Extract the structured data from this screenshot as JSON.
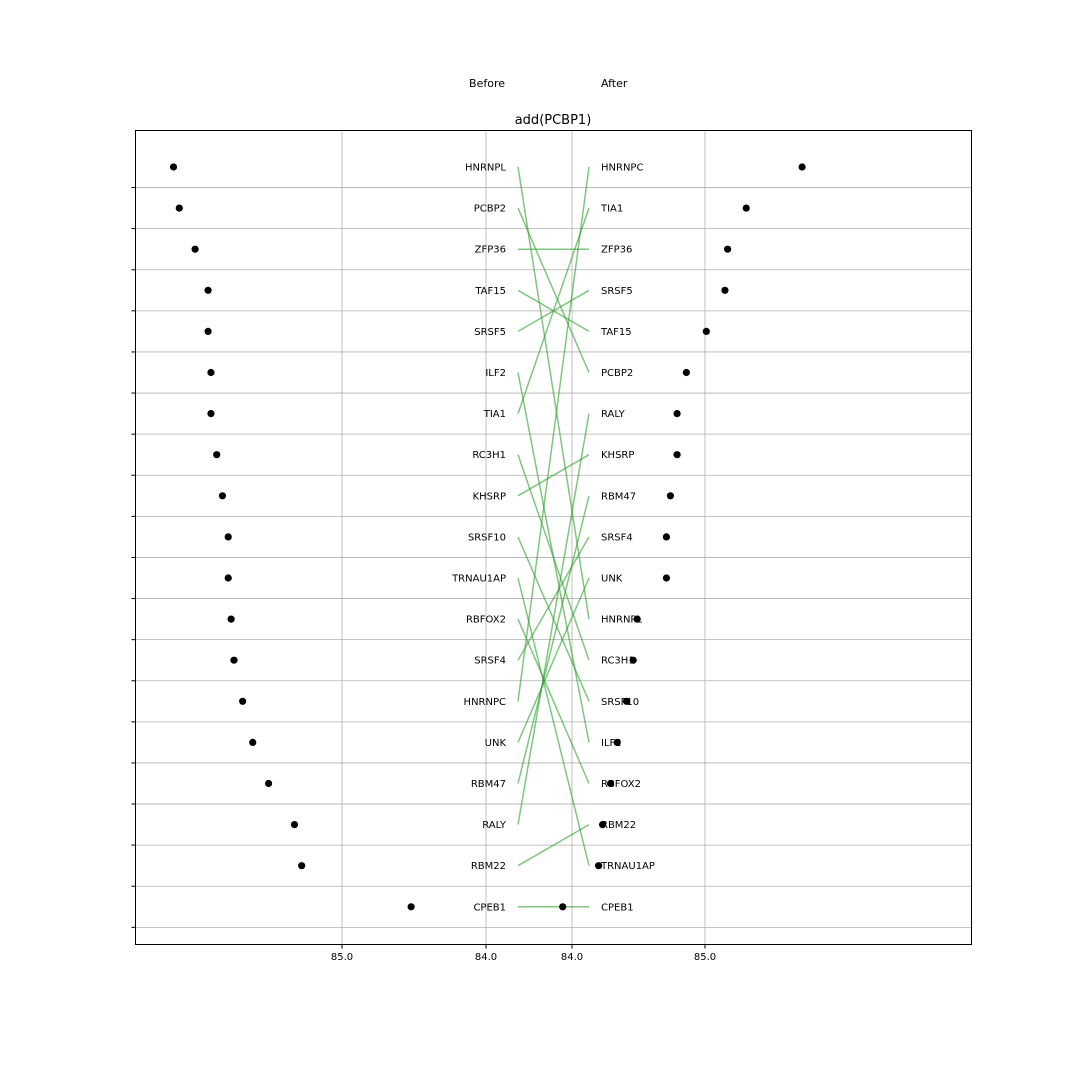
{
  "chart_data": {
    "type": "slope",
    "title": "add(PCBP1)",
    "before_label": "Before",
    "after_label": "After",
    "left_x_ticks": [
      "85.0",
      "84.0"
    ],
    "right_x_ticks": [
      "84.0",
      "85.0"
    ],
    "grid": true,
    "before": {
      "labels": [
        "HNRNPL",
        "PCBP2",
        "ZFP36",
        "TAF15",
        "SRSF5",
        "ILF2",
        "TIA1",
        "RC3H1",
        "KHSRP",
        "SRSF10",
        "TRNAU1AP",
        "RBFOX2",
        "SRSF4",
        "HNRNPC",
        "UNK",
        "RBM47",
        "RALY",
        "RBM22",
        "CPEB1"
      ],
      "values": [
        86.17,
        86.13,
        86.02,
        85.93,
        85.93,
        85.91,
        85.91,
        85.87,
        85.83,
        85.79,
        85.79,
        85.77,
        85.75,
        85.69,
        85.62,
        85.51,
        85.33,
        85.28,
        84.52
      ]
    },
    "after": {
      "labels": [
        "HNRNPC",
        "TIA1",
        "ZFP36",
        "SRSF5",
        "TAF15",
        "PCBP2",
        "RALY",
        "KHSRP",
        "RBM47",
        "SRSF4",
        "UNK",
        "HNRNPL",
        "RC3H1",
        "SRSF10",
        "ILF2",
        "RBFOX2",
        "RBM22",
        "TRNAU1AP",
        "CPEB1"
      ],
      "values": [
        85.73,
        85.31,
        85.17,
        85.15,
        85.01,
        84.86,
        84.79,
        84.79,
        84.74,
        84.71,
        84.71,
        84.49,
        84.46,
        84.41,
        84.34,
        84.29,
        84.23,
        84.2,
        83.93
      ]
    }
  },
  "colors": {
    "line": "#2ca02c",
    "dot": "#000000",
    "grid": "#b0b0b0",
    "frame": "#000000"
  }
}
